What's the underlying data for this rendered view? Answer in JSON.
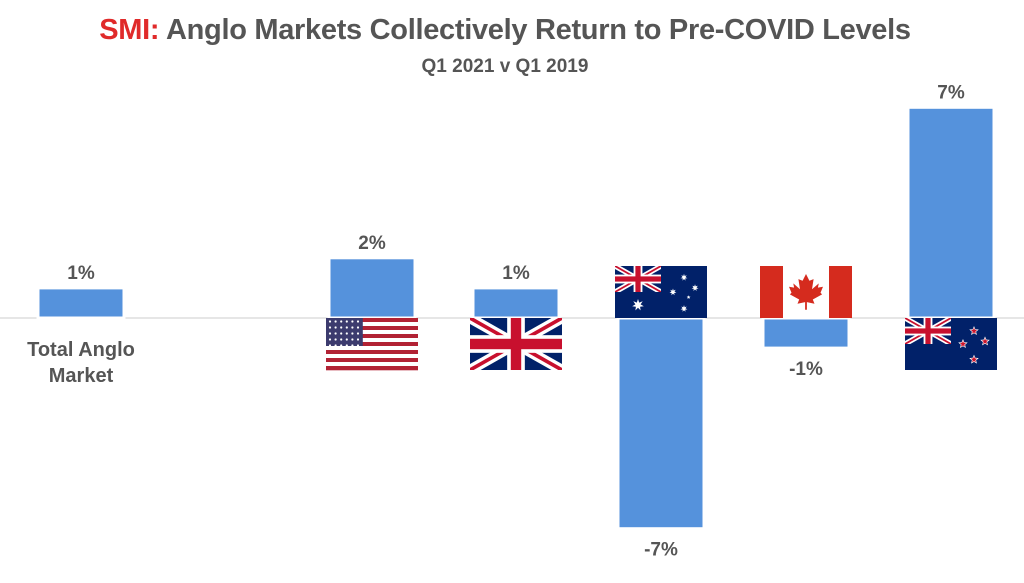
{
  "header": {
    "brand": "SMI:",
    "title": "Anglo Markets Collectively Return to Pre-COVID Levels",
    "subtitle": "Q1 2021 v Q1 2019"
  },
  "colors": {
    "bar": "#5592dc",
    "bar_border": "#ffffff",
    "baseline": "#cccccc",
    "text": "#555555",
    "brand": "#e02a2a"
  },
  "chart_data": {
    "type": "bar",
    "title": "SMI: Anglo Markets Collectively Return to Pre-COVID Levels",
    "subtitle": "Q1 2021 v Q1 2019",
    "categories": [
      "Total Anglo Market",
      "USA",
      "UK",
      "Australia",
      "Canada",
      "New Zealand"
    ],
    "category_labels_shown": [
      "Total Anglo Market",
      "",
      "",
      "",
      "",
      ""
    ],
    "category_icons": [
      "",
      "usa-flag",
      "uk-flag",
      "australia-flag",
      "canada-flag",
      "new-zealand-flag"
    ],
    "values": [
      1,
      2,
      1,
      -7,
      -1,
      7
    ],
    "value_labels": [
      "1%",
      "2%",
      "1%",
      "-7%",
      "-1%",
      "7%"
    ],
    "unit": "%",
    "ylim": [
      -7,
      7
    ],
    "grid": false,
    "legend": "none"
  }
}
